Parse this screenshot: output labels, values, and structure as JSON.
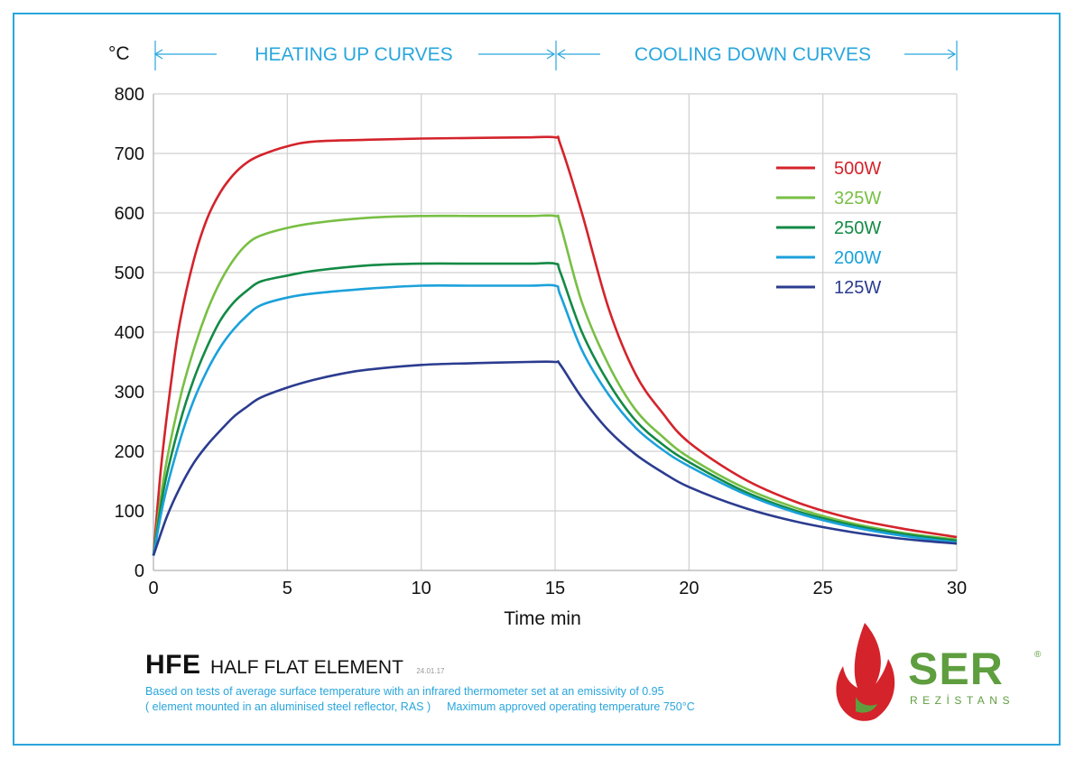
{
  "header": {
    "unit": "°C",
    "heating_label": "HEATING UP CURVES",
    "cooling_label": "COOLING DOWN CURVES"
  },
  "chart_data": {
    "type": "line",
    "title": "",
    "xlabel": "Time min",
    "ylabel": "°C",
    "xlim": [
      0,
      30
    ],
    "ylim": [
      0,
      800
    ],
    "x_ticks": [
      0,
      5,
      10,
      15,
      20,
      25,
      30
    ],
    "y_ticks": [
      0,
      100,
      200,
      300,
      400,
      500,
      600,
      700,
      800
    ],
    "grid": true,
    "legend_position": "top-right",
    "series": [
      {
        "name": "500W",
        "color": "#d4232b",
        "points": [
          [
            0,
            25
          ],
          [
            0.3,
            180
          ],
          [
            0.7,
            330
          ],
          [
            1,
            420
          ],
          [
            1.5,
            520
          ],
          [
            2,
            590
          ],
          [
            2.5,
            635
          ],
          [
            3,
            665
          ],
          [
            3.5,
            685
          ],
          [
            4,
            697
          ],
          [
            5,
            712
          ],
          [
            6,
            720
          ],
          [
            8,
            723
          ],
          [
            10,
            725
          ],
          [
            12,
            726
          ],
          [
            14,
            727
          ],
          [
            15,
            727
          ],
          [
            15.2,
            715
          ],
          [
            16,
            600
          ],
          [
            17,
            440
          ],
          [
            18,
            330
          ],
          [
            19,
            265
          ],
          [
            20,
            215
          ],
          [
            22,
            155
          ],
          [
            24,
            115
          ],
          [
            26,
            88
          ],
          [
            28,
            70
          ],
          [
            30,
            56
          ]
        ]
      },
      {
        "name": "325W",
        "color": "#78bf44",
        "points": [
          [
            0,
            25
          ],
          [
            0.4,
            160
          ],
          [
            1,
            290
          ],
          [
            1.5,
            370
          ],
          [
            2,
            435
          ],
          [
            2.5,
            485
          ],
          [
            3,
            522
          ],
          [
            3.5,
            548
          ],
          [
            4,
            562
          ],
          [
            5,
            575
          ],
          [
            6,
            583
          ],
          [
            8,
            592
          ],
          [
            10,
            595
          ],
          [
            12,
            595
          ],
          [
            14,
            595
          ],
          [
            15,
            595
          ],
          [
            15.2,
            580
          ],
          [
            16,
            450
          ],
          [
            17,
            345
          ],
          [
            18,
            270
          ],
          [
            19,
            225
          ],
          [
            20,
            190
          ],
          [
            22,
            140
          ],
          [
            24,
            105
          ],
          [
            26,
            80
          ],
          [
            28,
            63
          ],
          [
            30,
            52
          ]
        ]
      },
      {
        "name": "250W",
        "color": "#138a45",
        "points": [
          [
            0,
            25
          ],
          [
            0.4,
            140
          ],
          [
            1,
            250
          ],
          [
            1.5,
            320
          ],
          [
            2,
            375
          ],
          [
            2.5,
            420
          ],
          [
            3,
            450
          ],
          [
            3.5,
            470
          ],
          [
            4,
            485
          ],
          [
            5,
            495
          ],
          [
            6,
            503
          ],
          [
            8,
            512
          ],
          [
            10,
            515
          ],
          [
            12,
            515
          ],
          [
            14,
            515
          ],
          [
            15,
            515
          ],
          [
            15.2,
            500
          ],
          [
            16,
            400
          ],
          [
            17,
            315
          ],
          [
            18,
            252
          ],
          [
            19,
            212
          ],
          [
            20,
            182
          ],
          [
            22,
            134
          ],
          [
            24,
            100
          ],
          [
            26,
            77
          ],
          [
            28,
            61
          ],
          [
            30,
            50
          ]
        ]
      },
      {
        "name": "200W",
        "color": "#1ba1db",
        "points": [
          [
            0,
            25
          ],
          [
            0.4,
            120
          ],
          [
            1,
            220
          ],
          [
            1.5,
            285
          ],
          [
            2,
            335
          ],
          [
            2.5,
            375
          ],
          [
            3,
            405
          ],
          [
            3.5,
            428
          ],
          [
            4,
            445
          ],
          [
            5,
            458
          ],
          [
            6,
            465
          ],
          [
            8,
            473
          ],
          [
            10,
            478
          ],
          [
            12,
            478
          ],
          [
            14,
            478
          ],
          [
            15,
            478
          ],
          [
            15.2,
            462
          ],
          [
            16,
            370
          ],
          [
            17,
            295
          ],
          [
            18,
            240
          ],
          [
            19,
            203
          ],
          [
            20,
            175
          ],
          [
            22,
            130
          ],
          [
            24,
            97
          ],
          [
            26,
            74
          ],
          [
            28,
            58
          ],
          [
            30,
            47
          ]
        ]
      },
      {
        "name": "125W",
        "color": "#2b3c8f",
        "points": [
          [
            0,
            25
          ],
          [
            0.5,
            90
          ],
          [
            1,
            140
          ],
          [
            1.5,
            180
          ],
          [
            2,
            210
          ],
          [
            2.5,
            235
          ],
          [
            3,
            258
          ],
          [
            3.5,
            275
          ],
          [
            4,
            290
          ],
          [
            5,
            307
          ],
          [
            6,
            320
          ],
          [
            7,
            330
          ],
          [
            8,
            337
          ],
          [
            10,
            345
          ],
          [
            12,
            348
          ],
          [
            14,
            350
          ],
          [
            15,
            350
          ],
          [
            15.2,
            345
          ],
          [
            16,
            290
          ],
          [
            17,
            235
          ],
          [
            18,
            195
          ],
          [
            19,
            165
          ],
          [
            20,
            140
          ],
          [
            22,
            106
          ],
          [
            24,
            82
          ],
          [
            26,
            65
          ],
          [
            28,
            53
          ],
          [
            30,
            45
          ]
        ]
      }
    ]
  },
  "footer": {
    "code": "HFE",
    "name": "HALF FLAT ELEMENT",
    "date": "24.01.17",
    "note_line1": "Based on tests of average surface temperature with an infrared thermometer set at an emissivity of 0.95",
    "note_line2a": "( element mounted in an aluminised steel reflector, RAS )",
    "note_line2b": "Maximum approved operating temperature 750°C"
  },
  "logo": {
    "brand": "SER",
    "sub": "REZİSTANS",
    "registered": "®"
  },
  "colors": {
    "accent": "#29a6dd",
    "grid": "#d0d0d0",
    "axis": "#bdbdbd",
    "logo_green": "#5e9e3e",
    "logo_red": "#d4232b"
  }
}
